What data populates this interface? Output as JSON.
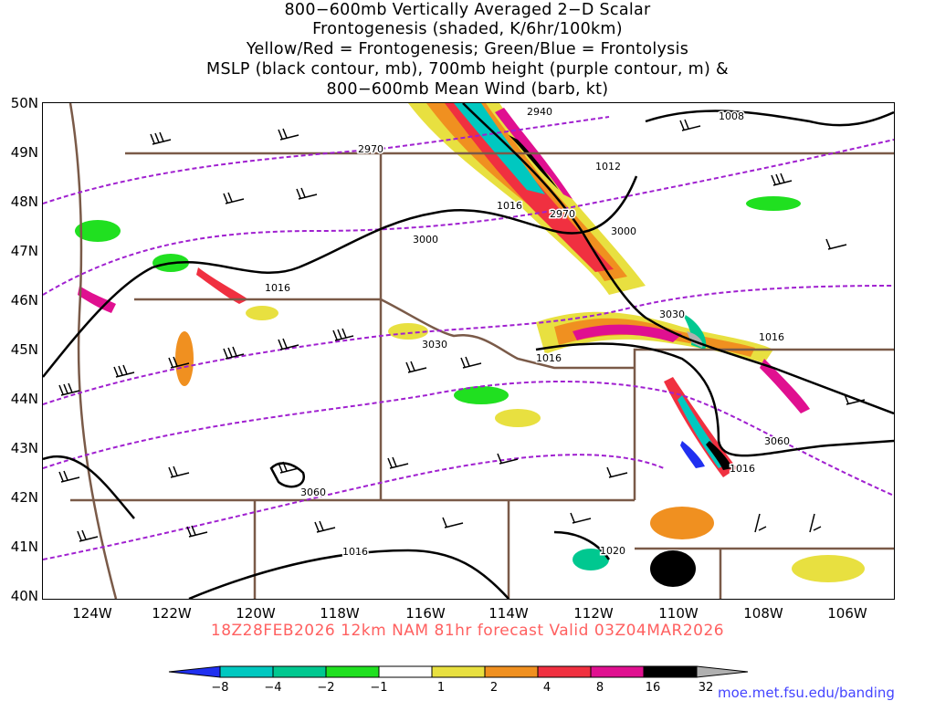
{
  "title": {
    "line1": "800−600mb Vertically Averaged 2−D Scalar",
    "line2": "Frontogenesis (shaded, K/6hr/100km)",
    "line3": "Yellow/Red = Frontogenesis;  Green/Blue = Frontolysis",
    "line4": "MSLP (black contour, mb), 700mb height (purple contour, m) &",
    "line5": "800−600mb Mean Wind (barb, kt)"
  },
  "axes": {
    "lat_labels": [
      "50N",
      "49N",
      "48N",
      "47N",
      "46N",
      "45N",
      "44N",
      "43N",
      "42N",
      "41N",
      "40N"
    ],
    "lon_labels": [
      "124W",
      "122W",
      "120W",
      "118W",
      "116W",
      "114W",
      "112W",
      "110W",
      "108W",
      "106W"
    ]
  },
  "contours": {
    "mslp": [
      "1008",
      "1012",
      "1016",
      "1016",
      "1016",
      "1016",
      "1016",
      "1016",
      "1020"
    ],
    "height": [
      "2940",
      "2970",
      "2970",
      "3000",
      "3000",
      "3030",
      "3030",
      "3060",
      "3060"
    ]
  },
  "footer": {
    "run": "18Z28FEB2026 12km NAM 81hr forecast Valid 03Z04MAR2026"
  },
  "colorbar": {
    "labels": [
      "−8",
      "−4",
      "−2",
      "−1",
      "1",
      "2",
      "4",
      "8",
      "16",
      "32"
    ],
    "colors": [
      "#2030f0",
      "#00c8c0",
      "#00c890",
      "#20e020",
      "#ffffff",
      "#e8e040",
      "#f09020",
      "#f03040",
      "#e01090",
      "#000000",
      "#b0b0b0"
    ]
  },
  "credit": "moe.met.fsu.edu/banding"
}
